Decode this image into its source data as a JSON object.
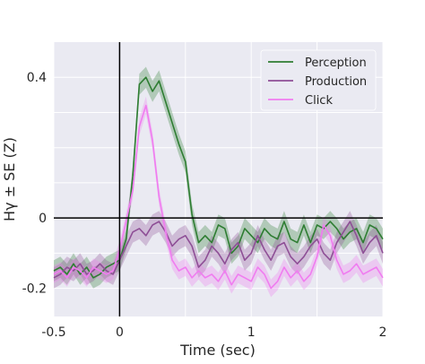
{
  "chart_data": {
    "type": "line",
    "xlabel": "Time (sec)",
    "ylabel": "Hγ ± SE (Z)",
    "xlim": [
      -0.5,
      2
    ],
    "ylim": [
      -0.28,
      0.5
    ],
    "xticks": [
      {
        "v": -0.5,
        "label": "-0.5"
      },
      {
        "v": 0,
        "label": "0"
      },
      {
        "v": 1,
        "label": "1"
      },
      {
        "v": 2,
        "label": "2"
      }
    ],
    "yticks": [
      {
        "v": -0.2,
        "label": "-0.2"
      },
      {
        "v": 0,
        "label": "0"
      },
      {
        "v": 0.4,
        "label": "0.4"
      }
    ],
    "grid": true,
    "background": "#eaeaf2",
    "legend_position": "top-right",
    "reference_lines": {
      "x": 0,
      "y": 0,
      "color": "#000000"
    },
    "x": [
      -0.5,
      -0.45,
      -0.4,
      -0.35,
      -0.3,
      -0.25,
      -0.2,
      -0.15,
      -0.1,
      -0.05,
      0,
      0.05,
      0.1,
      0.15,
      0.2,
      0.25,
      0.3,
      0.35,
      0.4,
      0.45,
      0.5,
      0.55,
      0.6,
      0.65,
      0.7,
      0.75,
      0.8,
      0.85,
      0.9,
      0.95,
      1,
      1.05,
      1.1,
      1.15,
      1.2,
      1.25,
      1.3,
      1.35,
      1.4,
      1.45,
      1.5,
      1.55,
      1.6,
      1.65,
      1.7,
      1.75,
      1.8,
      1.85,
      1.9,
      1.95,
      2
    ],
    "series": [
      {
        "name": "Perception",
        "color": "#2e7d32",
        "values": [
          -0.15,
          -0.14,
          -0.16,
          -0.13,
          -0.16,
          -0.14,
          -0.17,
          -0.16,
          -0.14,
          -0.13,
          -0.12,
          -0.06,
          0.12,
          0.38,
          0.4,
          0.36,
          0.39,
          0.33,
          0.27,
          0.21,
          0.16,
          0.01,
          -0.07,
          -0.05,
          -0.07,
          -0.02,
          -0.03,
          -0.1,
          -0.08,
          -0.03,
          -0.05,
          -0.07,
          -0.03,
          -0.05,
          -0.06,
          -0.01,
          -0.06,
          -0.07,
          -0.02,
          -0.07,
          -0.02,
          -0.03,
          -0.01,
          -0.03,
          -0.06,
          -0.04,
          -0.03,
          -0.07,
          -0.02,
          -0.03,
          -0.06
        ],
        "se": 0.03
      },
      {
        "name": "Production",
        "color": "#8e4f96",
        "values": [
          -0.17,
          -0.16,
          -0.14,
          -0.15,
          -0.13,
          -0.16,
          -0.15,
          -0.13,
          -0.15,
          -0.16,
          -0.12,
          -0.08,
          -0.04,
          -0.03,
          -0.05,
          -0.02,
          -0.01,
          -0.04,
          -0.08,
          -0.06,
          -0.05,
          -0.08,
          -0.14,
          -0.12,
          -0.08,
          -0.1,
          -0.13,
          -0.09,
          -0.07,
          -0.12,
          -0.1,
          -0.05,
          -0.09,
          -0.12,
          -0.08,
          -0.07,
          -0.11,
          -0.13,
          -0.11,
          -0.08,
          -0.06,
          -0.1,
          -0.12,
          -0.07,
          -0.04,
          -0.01,
          -0.05,
          -0.1,
          -0.07,
          -0.05,
          -0.1
        ],
        "se": 0.03
      },
      {
        "name": "Click",
        "color": "#f07cf0",
        "values": [
          -0.16,
          -0.15,
          -0.17,
          -0.14,
          -0.15,
          -0.17,
          -0.14,
          -0.15,
          -0.16,
          -0.15,
          -0.09,
          -0.01,
          0.08,
          0.26,
          0.32,
          0.22,
          0.06,
          -0.04,
          -0.12,
          -0.15,
          -0.14,
          -0.17,
          -0.15,
          -0.17,
          -0.16,
          -0.18,
          -0.15,
          -0.19,
          -0.16,
          -0.17,
          -0.18,
          -0.14,
          -0.16,
          -0.2,
          -0.18,
          -0.14,
          -0.17,
          -0.15,
          -0.18,
          -0.16,
          -0.11,
          -0.02,
          -0.05,
          -0.12,
          -0.16,
          -0.15,
          -0.13,
          -0.16,
          -0.15,
          -0.14,
          -0.17
        ],
        "se": 0.025
      }
    ]
  }
}
